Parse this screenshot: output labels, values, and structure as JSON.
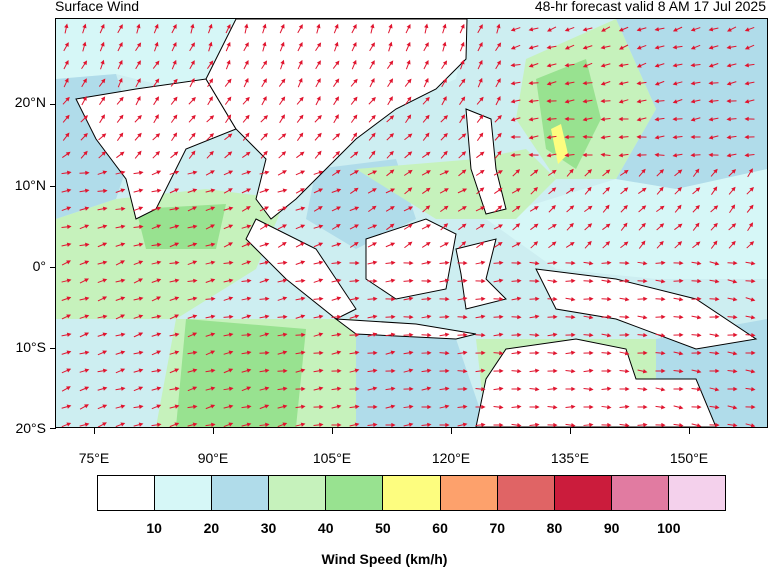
{
  "header": {
    "title": "Surface Wind",
    "subtitle": "48-hr forecast valid 8 AM 17 Jul 2025"
  },
  "axes": {
    "y_labels": [
      "20°N",
      "10°N",
      "0°",
      "10°S",
      "20°S"
    ],
    "x_labels": [
      "75°E",
      "90°E",
      "105°E",
      "120°E",
      "135°E",
      "150°E"
    ]
  },
  "legend": {
    "title": "Wind Speed (km/h)",
    "labels": [
      "10",
      "20",
      "30",
      "40",
      "50",
      "60",
      "70",
      "80",
      "90",
      "100"
    ],
    "colors": [
      "#ffffff",
      "#d6f7f7",
      "#b0dcea",
      "#c6f2bc",
      "#98e290",
      "#fdfd7f",
      "#fda16c",
      "#e06465",
      "#cb1c3c",
      "#e17ba1",
      "#f4d1ec"
    ]
  },
  "colors": {
    "land_outline": "#000000",
    "arrow": "#e0152f"
  }
}
